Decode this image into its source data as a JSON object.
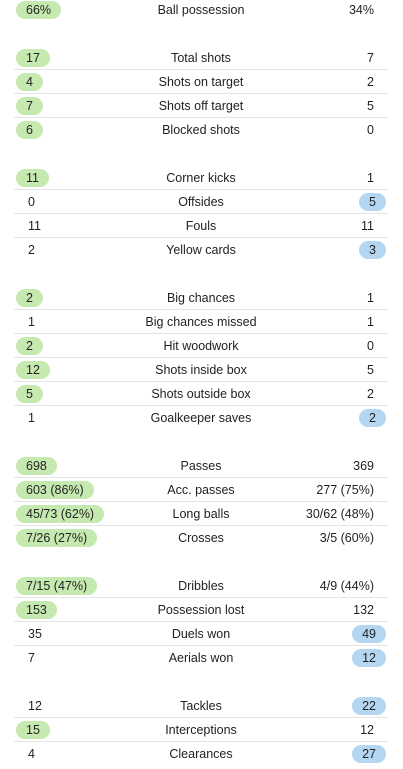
{
  "colors": {
    "home_highlight": "#c6e9b0",
    "away_highlight": "#b3d7f2",
    "row_divider": "#e3e3e3"
  },
  "stats": [
    {
      "label": "Ball possession",
      "home": "66%",
      "away": "34%",
      "leader": "home"
    },
    {
      "label": "Total shots",
      "home": "17",
      "away": "7",
      "leader": "home"
    },
    {
      "label": "Shots on target",
      "home": "4",
      "away": "2",
      "leader": "home"
    },
    {
      "label": "Shots off target",
      "home": "7",
      "away": "5",
      "leader": "home"
    },
    {
      "label": "Blocked shots",
      "home": "6",
      "away": "0",
      "leader": "home"
    },
    {
      "label": "Corner kicks",
      "home": "11",
      "away": "1",
      "leader": "home"
    },
    {
      "label": "Offsides",
      "home": "0",
      "away": "5",
      "leader": "away"
    },
    {
      "label": "Fouls",
      "home": "11",
      "away": "11",
      "leader": "none"
    },
    {
      "label": "Yellow cards",
      "home": "2",
      "away": "3",
      "leader": "away"
    },
    {
      "label": "Big chances",
      "home": "2",
      "away": "1",
      "leader": "home"
    },
    {
      "label": "Big chances missed",
      "home": "1",
      "away": "1",
      "leader": "none"
    },
    {
      "label": "Hit woodwork",
      "home": "2",
      "away": "0",
      "leader": "home"
    },
    {
      "label": "Shots inside box",
      "home": "12",
      "away": "5",
      "leader": "home"
    },
    {
      "label": "Shots outside box",
      "home": "5",
      "away": "2",
      "leader": "home"
    },
    {
      "label": "Goalkeeper saves",
      "home": "1",
      "away": "2",
      "leader": "away"
    },
    {
      "label": "Passes",
      "home": "698",
      "away": "369",
      "leader": "home"
    },
    {
      "label": "Acc. passes",
      "home": "603 (86%)",
      "away": "277 (75%)",
      "leader": "home"
    },
    {
      "label": "Long balls",
      "home": "45/73 (62%)",
      "away": "30/62 (48%)",
      "leader": "home"
    },
    {
      "label": "Crosses",
      "home": "7/26 (27%)",
      "away": "3/5 (60%)",
      "leader": "home"
    },
    {
      "label": "Dribbles",
      "home": "7/15 (47%)",
      "away": "4/9 (44%)",
      "leader": "home"
    },
    {
      "label": "Possession lost",
      "home": "153",
      "away": "132",
      "leader": "home"
    },
    {
      "label": "Duels won",
      "home": "35",
      "away": "49",
      "leader": "away"
    },
    {
      "label": "Aerials won",
      "home": "7",
      "away": "12",
      "leader": "away"
    },
    {
      "label": "Tackles",
      "home": "12",
      "away": "22",
      "leader": "away"
    },
    {
      "label": "Interceptions",
      "home": "15",
      "away": "12",
      "leader": "home"
    },
    {
      "label": "Clearances",
      "home": "4",
      "away": "27",
      "leader": "away"
    }
  ]
}
